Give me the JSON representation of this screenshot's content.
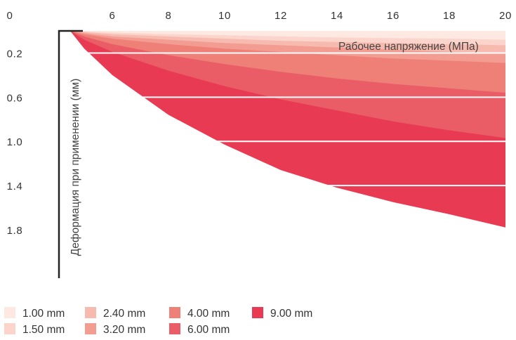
{
  "chart_data": {
    "type": "area",
    "x_axis": {
      "label": "Рабочее напряжение (МПа)",
      "ticks": [
        0,
        6,
        8,
        10,
        12,
        14,
        16,
        18,
        20
      ],
      "position": "top"
    },
    "y_axis": {
      "label": "Деформация при применении (мм)",
      "ticks": [
        "0.2",
        "0.6",
        "1.0",
        "1.4",
        "1.8"
      ],
      "inverted": true
    },
    "grid": "horizontal",
    "legend_position": "bottom-left",
    "series": [
      {
        "name": "9.00 mm",
        "color": "#e83a52",
        "x": [
          4.5,
          5,
          6,
          8,
          10,
          12,
          14,
          16,
          18,
          20
        ],
        "y": [
          0,
          0.16,
          0.4,
          0.76,
          1.03,
          1.26,
          1.42,
          1.55,
          1.66,
          1.78
        ]
      },
      {
        "name": "6.00 mm",
        "color": "#ea5d66",
        "x": [
          4.5,
          5,
          6,
          8,
          10,
          12,
          14,
          16,
          18,
          20
        ],
        "y": [
          0,
          0.08,
          0.19,
          0.36,
          0.5,
          0.62,
          0.72,
          0.82,
          0.9,
          0.97
        ]
      },
      {
        "name": "4.00 mm",
        "color": "#ef8078",
        "x": [
          4.5,
          5,
          6,
          8,
          10,
          12,
          14,
          16,
          18,
          20
        ],
        "y": [
          0,
          0.05,
          0.12,
          0.22,
          0.3,
          0.37,
          0.43,
          0.48,
          0.52,
          0.56
        ]
      },
      {
        "name": "3.20 mm",
        "color": "#f29c92",
        "x": [
          4.5,
          5,
          6,
          8,
          10,
          12,
          14,
          16,
          18,
          20
        ],
        "y": [
          0,
          0.03,
          0.07,
          0.12,
          0.16,
          0.19,
          0.22,
          0.25,
          0.27,
          0.29
        ]
      },
      {
        "name": "2.40 mm",
        "color": "#f7baaf",
        "x": [
          4.5,
          5,
          6,
          8,
          10,
          12,
          14,
          16,
          18,
          20
        ],
        "y": [
          0,
          0.02,
          0.05,
          0.08,
          0.11,
          0.13,
          0.15,
          0.17,
          0.19,
          0.2
        ]
      },
      {
        "name": "1.50 mm",
        "color": "#fbd4cb",
        "x": [
          4.5,
          5,
          6,
          8,
          10,
          12,
          14,
          16,
          18,
          20
        ],
        "y": [
          0,
          0.01,
          0.03,
          0.05,
          0.07,
          0.09,
          0.1,
          0.11,
          0.12,
          0.13
        ]
      },
      {
        "name": "1.00 mm",
        "color": "#fde8e2",
        "x": [
          4.5,
          5,
          6,
          8,
          10,
          12,
          14,
          16,
          18,
          20
        ],
        "y": [
          0,
          0.005,
          0.015,
          0.03,
          0.04,
          0.05,
          0.06,
          0.065,
          0.07,
          0.08
        ]
      }
    ],
    "legend": [
      {
        "name": "1.00 mm",
        "color": "#fde8e2"
      },
      {
        "name": "2.40 mm",
        "color": "#f7baaf"
      },
      {
        "name": "4.00 mm",
        "color": "#ef8078"
      },
      {
        "name": "9.00 mm",
        "color": "#e83a52"
      },
      {
        "name": "1.50 mm",
        "color": "#fbd4cb"
      },
      {
        "name": "3.20 mm",
        "color": "#f29c92"
      },
      {
        "name": "6.00 mm",
        "color": "#ea5d66"
      }
    ]
  }
}
